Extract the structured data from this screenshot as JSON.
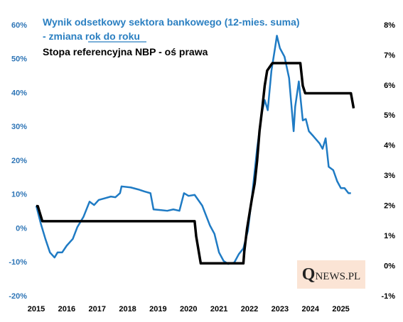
{
  "chart_data": {
    "type": "line",
    "title": "Wynik odsetkowy sektora bankowego (12-mies. suma)",
    "subtitle": "- zmiana rok do roku",
    "watermark": "QNEWS.PL",
    "xlim": [
      2015,
      2025.5
    ],
    "xticks": [
      2015,
      2016,
      2017,
      2018,
      2019,
      2020,
      2021,
      2022,
      2023,
      2024,
      2025
    ],
    "ylim": [
      -20,
      60
    ],
    "yticks": [
      {
        "value": -20,
        "label": "-20%"
      },
      {
        "value": -10,
        "label": "-10%"
      },
      {
        "value": 0,
        "label": "0%"
      },
      {
        "value": 10,
        "label": "10%"
      },
      {
        "value": 20,
        "label": "20%"
      },
      {
        "value": 30,
        "label": "30%"
      },
      {
        "value": 40,
        "label": "40%"
      },
      {
        "value": 50,
        "label": "50%"
      },
      {
        "value": 60,
        "label": "60%"
      }
    ],
    "y2lim": [
      -1,
      8
    ],
    "y2ticks": [
      {
        "value": -1,
        "label": "-1%"
      },
      {
        "value": 0,
        "label": "0%"
      },
      {
        "value": 1,
        "label": "1%"
      },
      {
        "value": 2,
        "label": "2%"
      },
      {
        "value": 3,
        "label": "3%"
      },
      {
        "value": 4,
        "label": "4%"
      },
      {
        "value": 5,
        "label": "5%"
      },
      {
        "value": 6,
        "label": "6%"
      },
      {
        "value": 7,
        "label": "7%"
      },
      {
        "value": 8,
        "label": "8%"
      }
    ],
    "series": [
      {
        "color": "#1f7bc4",
        "x": [
          2015.0,
          2015.15,
          2015.3,
          2015.45,
          2015.6,
          2015.7,
          2015.85,
          2016.0,
          2016.2,
          2016.35,
          2016.55,
          2016.75,
          2016.9,
          2017.05,
          2017.25,
          2017.45,
          2017.6,
          2017.75,
          2017.8,
          2018.1,
          2018.35,
          2018.55,
          2018.75,
          2018.85,
          2019.1,
          2019.3,
          2019.5,
          2019.7,
          2019.85,
          2020.0,
          2020.2,
          2020.45,
          2020.7,
          2020.85,
          2021.0,
          2021.15,
          2021.3,
          2021.5,
          2021.65,
          2021.8,
          2021.95,
          2022.1,
          2022.25,
          2022.4,
          2022.5,
          2022.6,
          2022.72,
          2022.85,
          2022.9,
          2023.0,
          2023.15,
          2023.3,
          2023.45,
          2023.5,
          2023.62,
          2023.75,
          2023.85,
          2023.95,
          2024.1,
          2024.3,
          2024.4,
          2024.5,
          2024.6,
          2024.75,
          2024.88,
          2025.0,
          2025.12,
          2025.25,
          2025.33
        ],
        "values": [
          6.8,
          1.5,
          -3,
          -7,
          -8.5,
          -7,
          -7,
          -5,
          -3,
          0.5,
          3.5,
          8,
          7,
          8.5,
          9,
          9.5,
          9.3,
          10.5,
          12.5,
          12.2,
          11.6,
          11,
          10.5,
          5.7,
          5.5,
          5.3,
          5.7,
          5.3,
          10.5,
          9.7,
          10,
          6.8,
          1,
          -1.5,
          -7,
          -9.5,
          -10.4,
          -10,
          -7.5,
          -5.8,
          -0.5,
          11,
          23.6,
          34,
          38,
          35,
          46.6,
          54,
          57,
          53.3,
          50.8,
          44.5,
          28.8,
          36,
          43.5,
          32,
          32.4,
          28.8,
          27.3,
          25.2,
          23.6,
          26.7,
          18.3,
          17.3,
          14,
          12,
          12,
          10.5,
          10.5
        ]
      },
      {
        "name": "Stopa referencyjna NBP - oś prawa",
        "color": "#000000",
        "axis": "y2",
        "x": [
          2015.0,
          2015.05,
          2015.2,
          2020.2,
          2020.25,
          2020.4,
          2021.8,
          2021.83,
          2021.92,
          2022.0,
          2022.08,
          2022.17,
          2022.25,
          2022.33,
          2022.42,
          2022.5,
          2022.58,
          2022.75,
          2023.67,
          2023.75,
          2023.83,
          2025.33,
          2025.42
        ],
        "values": [
          2.0,
          2.0,
          1.5,
          1.5,
          1.0,
          0.1,
          0.1,
          0.5,
          1.25,
          1.75,
          2.25,
          2.75,
          3.5,
          4.5,
          5.25,
          6.0,
          6.5,
          6.75,
          6.75,
          6.0,
          5.75,
          5.75,
          5.25
        ]
      }
    ]
  }
}
